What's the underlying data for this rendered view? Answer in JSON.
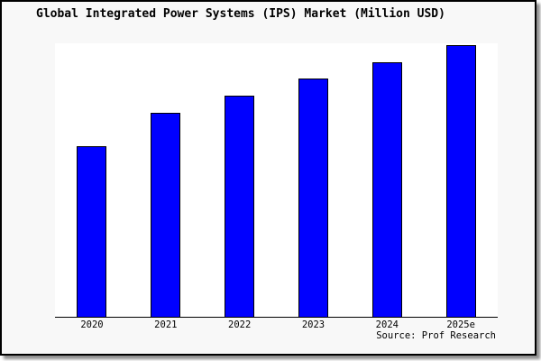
{
  "title": "Global Integrated Power Systems (IPS) Market (Million USD)",
  "source_credit": "Source: Prof Research",
  "colors": {
    "bar_fill": "#0000ff",
    "bar_border": "#000000",
    "canvas_background": "#f8f8f8",
    "plot_background": "#ffffff",
    "axis": "#000000",
    "frame_border": "#000000",
    "shadow": "#8f8f8f",
    "text": "#000000"
  },
  "chart_data": {
    "type": "bar",
    "title": "Global Integrated Power Systems (IPS) Market (Million USD)",
    "categories": [
      "2020",
      "2021",
      "2022",
      "2023",
      "2024",
      "2025e"
    ],
    "values": [
      189,
      226,
      245,
      264,
      282,
      301
    ],
    "value_scale": "relative height (no y-axis tick labels shown in image)",
    "xlabel": "",
    "ylabel": "",
    "grid": false,
    "legend": false,
    "y_axis_labels_visible": false,
    "bar_color": "#0000ff",
    "annotation": "Source: Prof Research"
  }
}
